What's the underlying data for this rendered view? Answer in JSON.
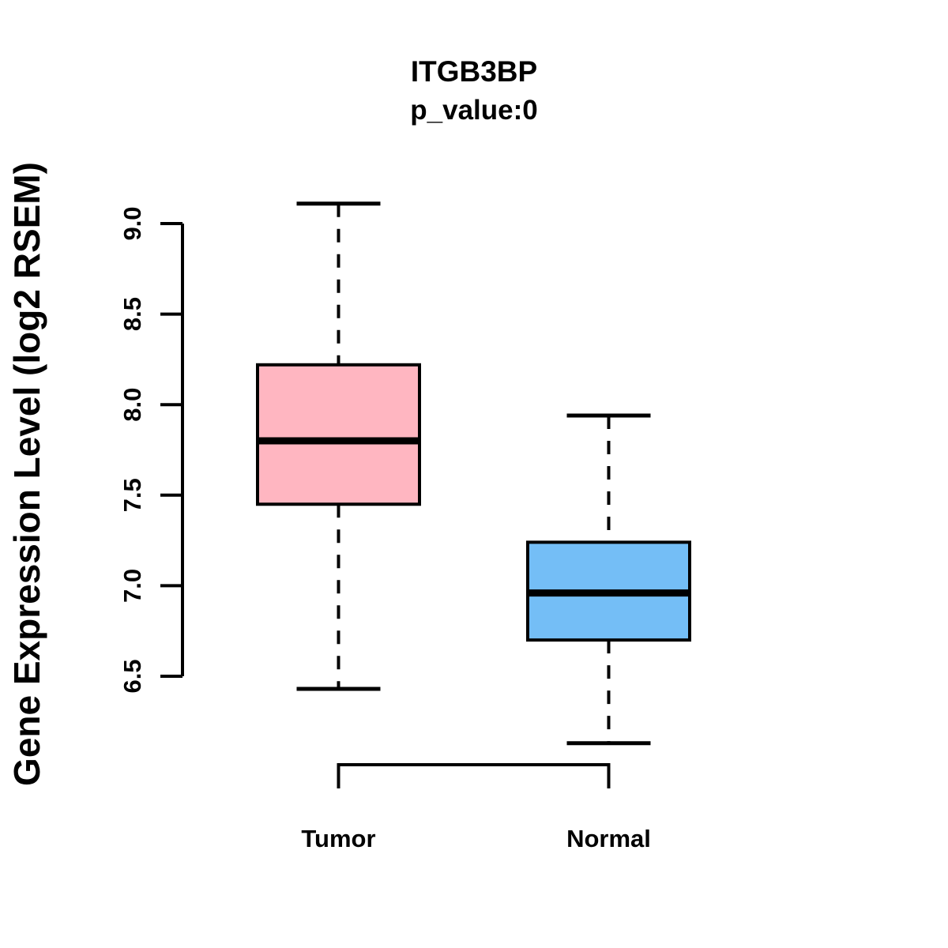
{
  "figure": {
    "title": "ITGB3BP",
    "subtitle": "p_value:0",
    "ylabel": "Gene Expression Level (log2 RSEM)"
  },
  "chart_data": {
    "type": "boxplot",
    "title": "ITGB3BP",
    "subtitle": "p_value:0",
    "ylabel": "Gene Expression Level (log2 RSEM)",
    "xlabel": "",
    "categories": [
      "Tumor",
      "Normal"
    ],
    "series": [
      {
        "name": "Tumor",
        "whisker_low": 6.43,
        "q1": 7.45,
        "median": 7.8,
        "q3": 8.22,
        "whisker_high": 9.11,
        "fill": "#FFB6C1"
      },
      {
        "name": "Normal",
        "whisker_low": 6.13,
        "q1": 6.7,
        "median": 6.96,
        "q3": 7.24,
        "whisker_high": 7.94,
        "fill": "#74BEF6"
      }
    ],
    "yticks": [
      6.5,
      7.0,
      7.5,
      8.0,
      8.5,
      9.0
    ],
    "ylim": [
      6.5,
      9.0
    ],
    "grid": false,
    "legend": "none",
    "stroke_color": "#000000",
    "whisker_style": "dashed"
  }
}
